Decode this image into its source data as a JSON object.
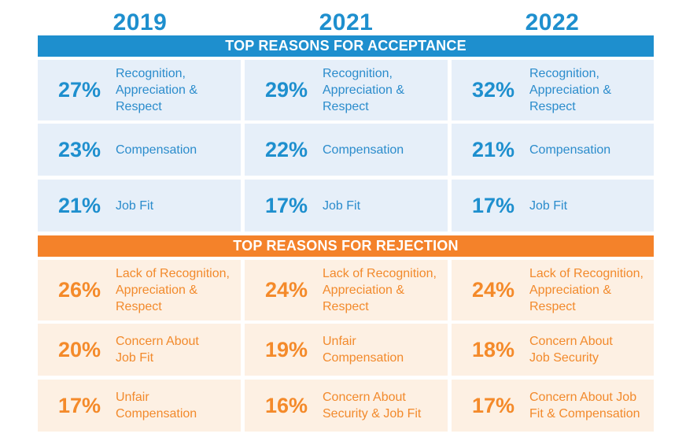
{
  "colors": {
    "acceptance_band": "#1e8fce",
    "acceptance_cell": "#e6eff9",
    "rejection_band": "#f4822a",
    "rejection_cell": "#fdf0e3",
    "year_text": "#1e8fce"
  },
  "years": [
    "2019",
    "2021",
    "2022"
  ],
  "acceptance": {
    "title": "TOP REASONS FOR ACCEPTANCE",
    "rows": [
      [
        {
          "pct": "27%",
          "label": "Recognition,\nAppreciation &\nRespect"
        },
        {
          "pct": "29%",
          "label": "Recognition,\nAppreciation &\nRespect"
        },
        {
          "pct": "32%",
          "label": "Recognition,\nAppreciation &\nRespect"
        }
      ],
      [
        {
          "pct": "23%",
          "label": "Compensation"
        },
        {
          "pct": "22%",
          "label": "Compensation"
        },
        {
          "pct": "21%",
          "label": "Compensation"
        }
      ],
      [
        {
          "pct": "21%",
          "label": "Job Fit"
        },
        {
          "pct": "17%",
          "label": "Job Fit"
        },
        {
          "pct": "17%",
          "label": "Job Fit"
        }
      ]
    ]
  },
  "rejection": {
    "title": "TOP REASONS FOR REJECTION",
    "rows": [
      [
        {
          "pct": "26%",
          "label": "Lack of Recognition,\nAppreciation &\nRespect"
        },
        {
          "pct": "24%",
          "label": "Lack of Recognition,\nAppreciation &\nRespect"
        },
        {
          "pct": "24%",
          "label": "Lack of Recognition,\nAppreciation &\nRespect"
        }
      ],
      [
        {
          "pct": "20%",
          "label": "Concern About\nJob Fit"
        },
        {
          "pct": "19%",
          "label": "Unfair\nCompensation"
        },
        {
          "pct": "18%",
          "label": "Concern About\nJob Security"
        }
      ],
      [
        {
          "pct": "17%",
          "label": "Unfair\nCompensation"
        },
        {
          "pct": "16%",
          "label": "Concern About\nSecurity & Job Fit"
        },
        {
          "pct": "17%",
          "label": "Concern About Job\nFit & Compensation"
        }
      ]
    ]
  }
}
